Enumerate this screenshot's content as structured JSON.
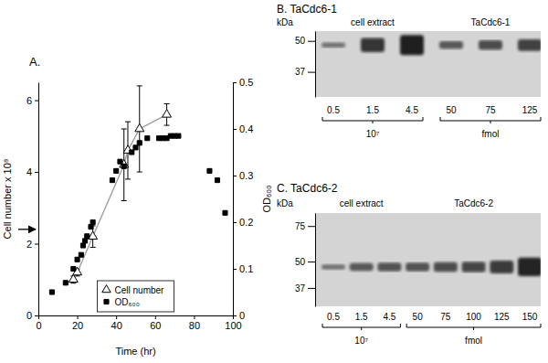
{
  "chart_data": [
    {
      "type": "scatter",
      "title": "A.",
      "x_label": "Time (hr)",
      "y_label": "Cell number x 10⁸",
      "y2_label": "OD₆₀₀",
      "xlim": [
        0,
        100
      ],
      "xticks": [
        0,
        20,
        40,
        60,
        80,
        100
      ],
      "ylim": [
        0,
        6.5
      ],
      "yticks": [
        0,
        2,
        4,
        6
      ],
      "y2lim": [
        0,
        0.5
      ],
      "y2ticks": [
        0,
        0.1,
        0.2,
        0.3,
        0.4,
        0.5
      ],
      "legend": "lower center",
      "annotations": [
        {
          "type": "arrow",
          "y": 2.4
        }
      ],
      "series": [
        {
          "name": "Cell number",
          "type": "line",
          "marker": "triangle-open",
          "color": "#999999",
          "x": [
            18,
            20,
            28,
            44,
            46,
            52,
            66
          ],
          "values": [
            1.0,
            1.2,
            2.2,
            4.2,
            4.6,
            5.2,
            5.6
          ],
          "errors": [
            0.1,
            0.1,
            0.3,
            1.0,
            0.8,
            1.2,
            0.3
          ]
        },
        {
          "name": "OD₆₀₀",
          "type": "scatter",
          "marker": "square",
          "color": "#000000",
          "axis": "y2",
          "x": [
            7,
            14,
            18,
            20,
            22,
            23,
            24,
            25,
            27,
            28,
            38,
            40,
            42,
            44,
            48,
            50,
            52,
            56,
            62,
            64,
            66,
            68,
            70,
            72,
            88,
            92,
            96
          ],
          "values": [
            0.05,
            0.07,
            0.1,
            0.12,
            0.13,
            0.15,
            0.16,
            0.17,
            0.19,
            0.2,
            0.29,
            0.31,
            0.33,
            0.32,
            0.35,
            0.36,
            0.37,
            0.38,
            0.38,
            0.38,
            0.38,
            0.385,
            0.385,
            0.385,
            0.31,
            0.29,
            0.22
          ]
        }
      ]
    },
    {
      "type": "blot",
      "title": "B. TaCdc6-1",
      "y_label": "kDa",
      "log": "y",
      "ylim": [
        55,
        29
      ],
      "yticks": [
        50,
        37
      ],
      "band_kda": 48,
      "groups": [
        {
          "name": "cell extract",
          "unit": "10⁷",
          "categories": [
            "0.5",
            "1.5",
            "4.5"
          ],
          "values": [
            0.3,
            0.8,
            1.0
          ]
        },
        {
          "name": "TaCdc6-1",
          "unit": "fmol",
          "categories": [
            "50",
            "75",
            "125"
          ],
          "values": [
            0.5,
            0.6,
            0.7
          ]
        }
      ]
    },
    {
      "type": "blot",
      "title": "C. TaCdc6-2",
      "y_label": "kDa",
      "log": "y",
      "ylim": [
        87,
        30
      ],
      "yticks": [
        75,
        50,
        37
      ],
      "band_kda": 47,
      "groups": [
        {
          "name": "cell extract",
          "unit": "10⁷",
          "categories": [
            "0.5",
            "1.5",
            "4.5"
          ],
          "values": [
            0.3,
            0.5,
            0.55
          ]
        },
        {
          "name": "TaCdc6-2",
          "unit": "fmol",
          "categories": [
            "50",
            "75",
            "100",
            "125",
            "150"
          ],
          "values": [
            0.55,
            0.6,
            0.65,
            0.75,
            0.95
          ]
        }
      ]
    }
  ]
}
